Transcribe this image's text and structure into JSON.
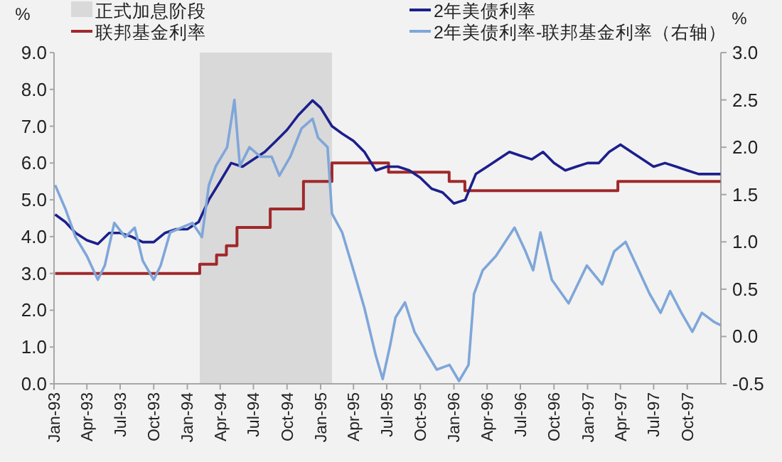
{
  "chart_data": {
    "type": "line",
    "ylabel": "%",
    "y2label": "%",
    "legend": "top",
    "xlim": [
      "1993-01",
      "1998-01"
    ],
    "xticks": [
      {
        "value": "1993-01",
        "label": "Jan-93"
      },
      {
        "value": "1993-04",
        "label": "Apr-93"
      },
      {
        "value": "1993-07",
        "label": "Jul-93"
      },
      {
        "value": "1993-10",
        "label": "Oct-93"
      },
      {
        "value": "1994-01",
        "label": "Jan-94"
      },
      {
        "value": "1994-04",
        "label": "Apr-94"
      },
      {
        "value": "1994-07",
        "label": "Jul-94"
      },
      {
        "value": "1994-10",
        "label": "Oct-94"
      },
      {
        "value": "1995-01",
        "label": "Jan-95"
      },
      {
        "value": "1995-04",
        "label": "Apr-95"
      },
      {
        "value": "1995-07",
        "label": "Jul-95"
      },
      {
        "value": "1995-10",
        "label": "Oct-95"
      },
      {
        "value": "1996-01",
        "label": "Jan-96"
      },
      {
        "value": "1996-04",
        "label": "Apr-96"
      },
      {
        "value": "1996-07",
        "label": "Jul-96"
      },
      {
        "value": "1996-10",
        "label": "Oct-96"
      },
      {
        "value": "1997-01",
        "label": "Jan-97"
      },
      {
        "value": "1997-04",
        "label": "Apr-97"
      },
      {
        "value": "1997-07",
        "label": "Jul-97"
      },
      {
        "value": "1997-10",
        "label": "Oct-97"
      }
    ],
    "ylim": [
      0,
      9
    ],
    "yticks": [
      {
        "value": 0,
        "label": "0.0"
      },
      {
        "value": 1,
        "label": "1.0"
      },
      {
        "value": 2,
        "label": "2.0"
      },
      {
        "value": 3,
        "label": "3.0"
      },
      {
        "value": 4,
        "label": "4.0"
      },
      {
        "value": 5,
        "label": "5.0"
      },
      {
        "value": 6,
        "label": "6.0"
      },
      {
        "value": 7,
        "label": "7.0"
      },
      {
        "value": 8,
        "label": "8.0"
      },
      {
        "value": 9,
        "label": "9.0"
      }
    ],
    "y2lim": [
      -0.5,
      3
    ],
    "y2ticks": [
      -0.5,
      {
        "value": 0,
        "label": "0.0"
      },
      0.5,
      {
        "value": 1,
        "label": "1.0"
      },
      1.5,
      {
        "value": 2,
        "label": "2.0"
      },
      2.5,
      {
        "value": 3,
        "label": "3.0"
      }
    ],
    "bands": [
      {
        "axis": "x",
        "from": "1994-02-04",
        "to": "1995-02-01",
        "label": "正式加息阶段",
        "color": "#d9d9d9"
      }
    ],
    "series": [
      {
        "name": "联邦基金利率",
        "type": "step",
        "color": "#a0282a",
        "x": [
          "1993-01-04",
          "1994-02-04",
          "1994-03-22",
          "1994-04-18",
          "1994-05-17",
          "1994-08-16",
          "1994-11-15",
          "1995-02-01",
          "1995-07-06",
          "1995-12-19",
          "1996-01-31",
          "1997-03-25",
          "1997-12-31"
        ],
        "values": [
          3.0,
          3.25,
          3.5,
          3.75,
          4.25,
          4.75,
          5.5,
          6.0,
          5.75,
          5.5,
          5.25,
          5.5,
          5.5
        ]
      },
      {
        "name": "2年美债利率",
        "color": "#1c1f8c",
        "x": [
          "1993-01-04",
          "1993-02-01",
          "1993-03-01",
          "1993-04-01",
          "1993-05-01",
          "1993-06-01",
          "1993-07-01",
          "1993-08-01",
          "1993-09-01",
          "1993-10-01",
          "1993-11-01",
          "1993-12-01",
          "1994-01-01",
          "1994-02-01",
          "1994-03-01",
          "1994-04-01",
          "1994-05-01",
          "1994-06-01",
          "1994-07-01",
          "1994-08-01",
          "1994-09-01",
          "1994-10-01",
          "1994-11-01",
          "1994-12-10",
          "1995-01-01",
          "1995-02-01",
          "1995-03-01",
          "1995-04-01",
          "1995-05-01",
          "1995-06-01",
          "1995-07-01",
          "1995-08-01",
          "1995-09-01",
          "1995-10-01",
          "1995-11-01",
          "1995-12-01",
          "1996-01-01",
          "1996-02-01",
          "1996-03-01",
          "1996-04-01",
          "1996-05-01",
          "1996-06-01",
          "1996-07-01",
          "1996-08-01",
          "1996-09-01",
          "1996-10-01",
          "1996-11-01",
          "1996-12-01",
          "1997-01-01",
          "1997-02-01",
          "1997-03-01",
          "1997-04-01",
          "1997-05-01",
          "1997-06-01",
          "1997-07-01",
          "1997-08-01",
          "1997-09-01",
          "1997-10-01",
          "1997-11-01",
          "1997-12-31"
        ],
        "values": [
          4.6,
          4.4,
          4.1,
          3.9,
          3.8,
          4.1,
          4.1,
          4.0,
          3.85,
          3.85,
          4.1,
          4.2,
          4.2,
          4.4,
          5.0,
          5.5,
          6.0,
          5.9,
          6.1,
          6.3,
          6.6,
          6.9,
          7.3,
          7.7,
          7.5,
          7.0,
          6.8,
          6.6,
          6.3,
          5.8,
          5.9,
          5.9,
          5.8,
          5.6,
          5.3,
          5.2,
          4.9,
          5.0,
          5.7,
          5.9,
          6.1,
          6.3,
          6.2,
          6.1,
          6.3,
          6.0,
          5.8,
          5.9,
          6.0,
          6.0,
          6.3,
          6.5,
          6.3,
          6.1,
          5.9,
          6.0,
          5.9,
          5.8,
          5.7,
          5.7
        ]
      },
      {
        "name": "2年美债利率-联邦基金利率（右轴）",
        "axis": "y2",
        "color": "#7fa6d9",
        "x": [
          "1993-01-04",
          "1993-02-01",
          "1993-03-01",
          "1993-04-01",
          "1993-05-01",
          "1993-05-20",
          "1993-06-15",
          "1993-07-15",
          "1993-08-10",
          "1993-09-01",
          "1993-10-01",
          "1993-10-20",
          "1993-11-15",
          "1993-12-15",
          "1994-01-15",
          "1994-02-10",
          "1994-03-01",
          "1994-03-20",
          "1994-04-20",
          "1994-05-10",
          "1994-05-25",
          "1994-06-20",
          "1994-07-20",
          "1994-08-20",
          "1994-09-10",
          "1994-10-10",
          "1994-11-10",
          "1994-12-10",
          "1994-12-25",
          "1995-01-20",
          "1995-02-01",
          "1995-03-01",
          "1995-04-01",
          "1995-05-01",
          "1995-06-01",
          "1995-06-20",
          "1995-07-10",
          "1995-07-25",
          "1995-08-20",
          "1995-09-15",
          "1995-10-15",
          "1995-11-15",
          "1995-12-20",
          "1996-01-15",
          "1996-02-10",
          "1996-02-25",
          "1996-03-20",
          "1996-04-25",
          "1996-06-15",
          "1996-07-15",
          "1996-08-05",
          "1996-08-25",
          "1996-09-25",
          "1996-11-10",
          "1996-12-30",
          "1997-02-10",
          "1997-03-15",
          "1997-04-15",
          "1997-05-15",
          "1997-06-20",
          "1997-07-20",
          "1997-08-15",
          "1997-09-15",
          "1997-10-15",
          "1997-11-10",
          "1997-12-15",
          "1997-12-31"
        ],
        "values": [
          1.6,
          1.35,
          1.05,
          0.85,
          0.6,
          0.75,
          1.2,
          1.05,
          1.15,
          0.8,
          0.6,
          0.75,
          1.1,
          1.15,
          1.2,
          1.05,
          1.6,
          1.8,
          2.0,
          2.5,
          1.8,
          2.0,
          1.9,
          1.9,
          1.7,
          1.9,
          2.2,
          2.3,
          2.1,
          2.0,
          1.3,
          1.1,
          0.7,
          0.3,
          -0.2,
          -0.45,
          -0.1,
          0.2,
          0.36,
          0.05,
          -0.15,
          -0.35,
          -0.3,
          -0.47,
          -0.3,
          0.45,
          0.7,
          0.85,
          1.15,
          0.9,
          0.7,
          1.1,
          0.6,
          0.35,
          0.75,
          0.55,
          0.9,
          1.0,
          0.75,
          0.45,
          0.25,
          0.48,
          0.25,
          0.05,
          0.25,
          0.15,
          0.12
        ]
      }
    ]
  }
}
